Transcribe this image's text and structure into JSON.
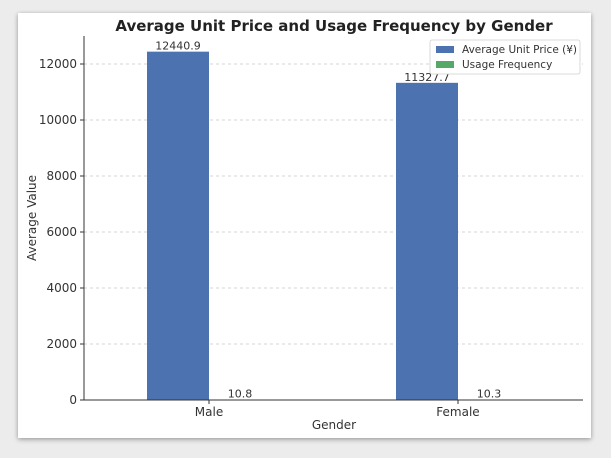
{
  "chart_data": {
    "type": "bar",
    "title": "Average Unit Price and Usage Frequency by Gender",
    "xlabel": "Gender",
    "ylabel": "Average Value",
    "categories": [
      "Male",
      "Female"
    ],
    "series": [
      {
        "name": "Average Unit Price (¥)",
        "values": [
          12440.9,
          11327.7
        ],
        "labels": [
          "12440.9",
          "11327.7"
        ],
        "color": "#4c72b0"
      },
      {
        "name": "Usage Frequency",
        "values": [
          10.8,
          10.3
        ],
        "labels": [
          "10.8",
          "10.3"
        ],
        "color": "#55a868"
      }
    ],
    "ylim": [
      0,
      13000
    ],
    "yticks": [
      0,
      2000,
      4000,
      6000,
      8000,
      10000,
      12000
    ],
    "grid": "horizontal dashed",
    "legend_position": "top-right"
  }
}
